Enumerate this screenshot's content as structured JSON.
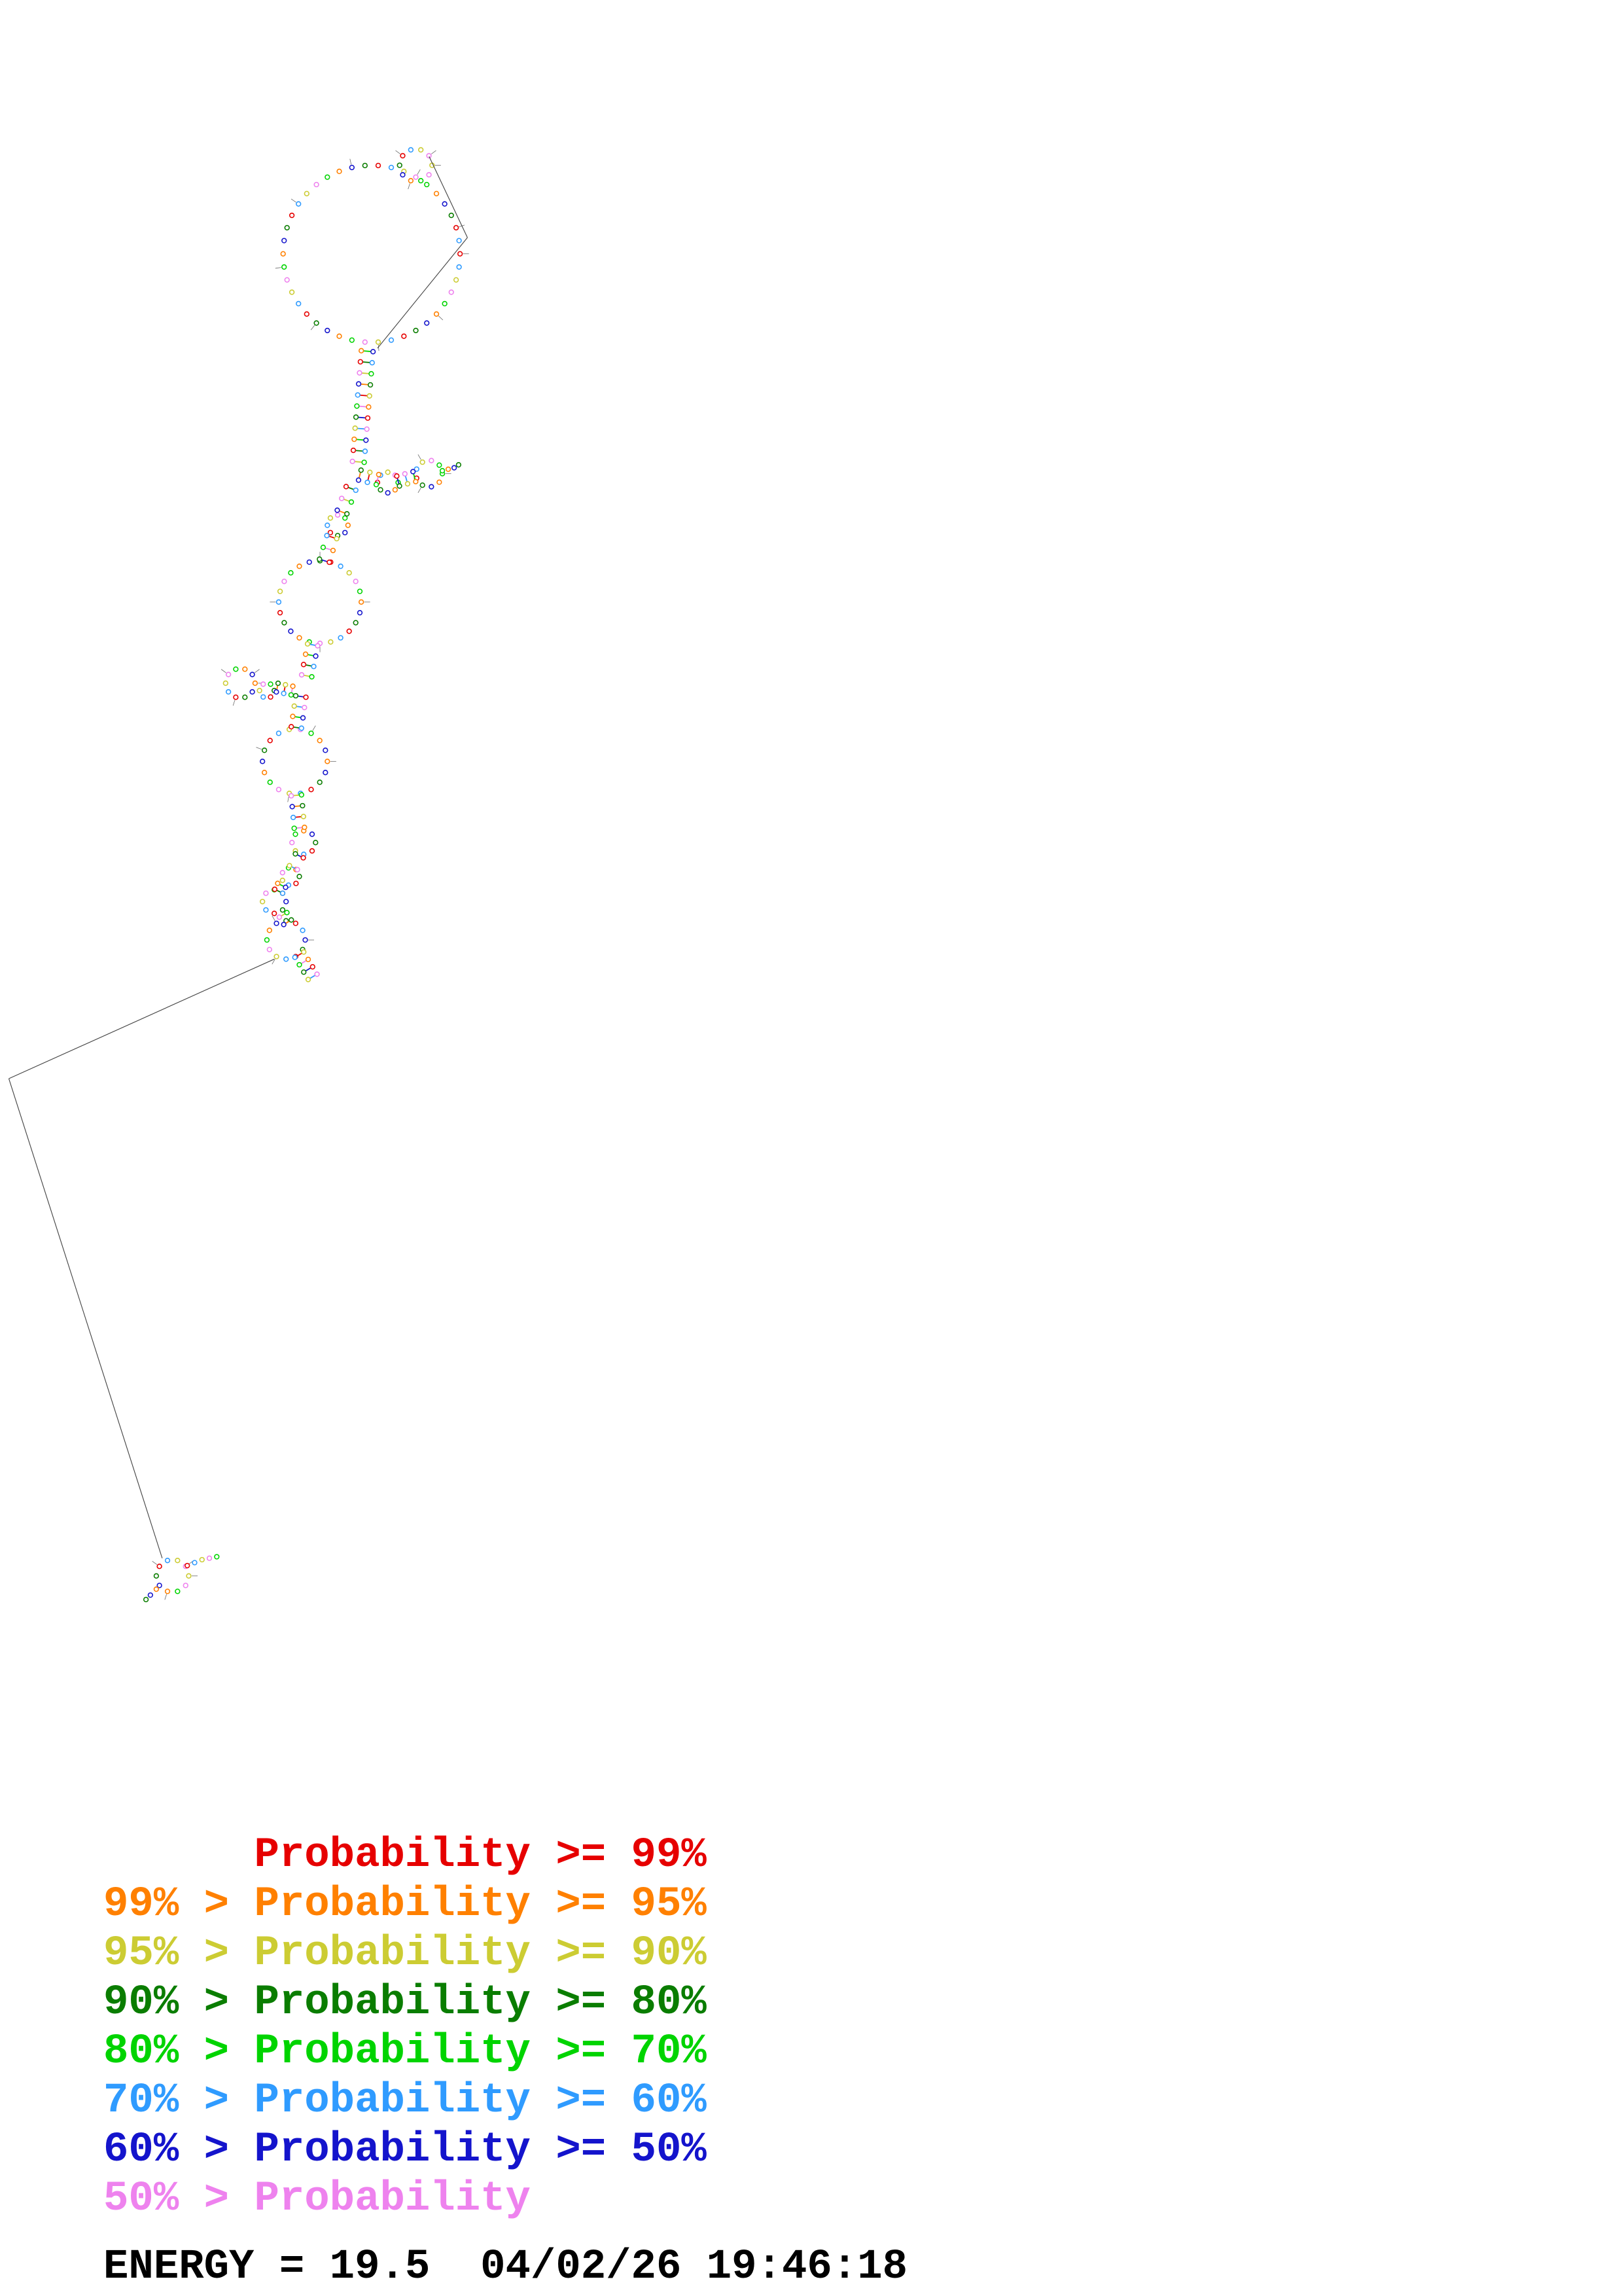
{
  "page": {
    "background": "#ffffff",
    "kind": "rna-secondary-structure-plot"
  },
  "legend": {
    "items": [
      {
        "text": "      Probability >= 99%",
        "color": "#e60000"
      },
      {
        "text": "99% > Probability >= 95%",
        "color": "#ff8000"
      },
      {
        "text": "95% > Probability >= 90%",
        "color": "#cccc33"
      },
      {
        "text": "90% > Probability >= 80%",
        "color": "#0a7d00"
      },
      {
        "text": "80% > Probability >= 70%",
        "color": "#00d400"
      },
      {
        "text": "70% > Probability >= 60%",
        "color": "#2f9bff"
      },
      {
        "text": "60% > Probability >= 50%",
        "color": "#1414cc"
      },
      {
        "text": "50% > Probability",
        "color": "#ee82ee"
      }
    ]
  },
  "footer": {
    "energy_text": "ENERGY = 19.5  04/02/26 19:46:18"
  }
}
